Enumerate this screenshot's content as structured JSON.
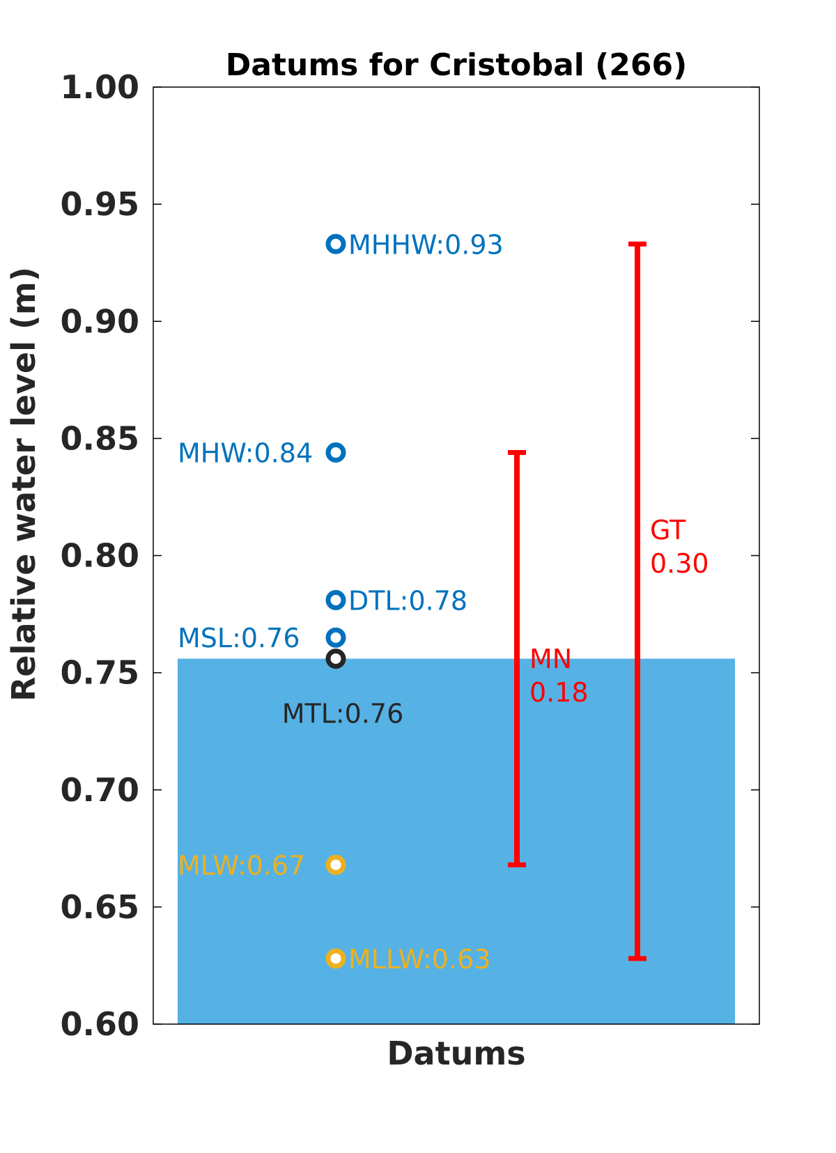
{
  "chart_data": {
    "type": "scatter",
    "title": "Datums for Cristobal (266)",
    "xlabel": "Datums",
    "ylabel": "Relative water level (m)",
    "ylim": [
      0.6,
      1.0
    ],
    "yticks": [
      "0.60",
      "0.65",
      "0.70",
      "0.75",
      "0.80",
      "0.85",
      "0.90",
      "0.95",
      "1.00"
    ],
    "ytick_values": [
      0.6,
      0.65,
      0.7,
      0.75,
      0.8,
      0.85,
      0.9,
      0.95,
      1.0
    ],
    "grid": false,
    "water_fill": {
      "top": 0.756,
      "bottom": 0.6,
      "color": "#56B2E5"
    },
    "points": [
      {
        "name": "MHHW",
        "value": 0.933,
        "label": "MHHW:0.93",
        "color": "#0072BD",
        "label_side": "right"
      },
      {
        "name": "MHW",
        "value": 0.844,
        "label": "MHW:0.84",
        "color": "#0072BD",
        "label_side": "left"
      },
      {
        "name": "DTL",
        "value": 0.781,
        "label": "DTL:0.78",
        "color": "#0072BD",
        "label_side": "right"
      },
      {
        "name": "MSL",
        "value": 0.765,
        "label": "MSL:0.76",
        "color": "#0072BD",
        "label_side": "left"
      },
      {
        "name": "MTL",
        "value": 0.756,
        "label": "MTL:0.76",
        "color": "#262626",
        "label_side": "below"
      },
      {
        "name": "MLW",
        "value": 0.668,
        "label": "MLW:0.67",
        "color": "#EDB120",
        "label_side": "left"
      },
      {
        "name": "MLLW",
        "value": 0.628,
        "label": "MLLW:0.63",
        "color": "#EDB120",
        "label_side": "right"
      }
    ],
    "ranges": [
      {
        "name": "MN",
        "low": 0.668,
        "high": 0.844,
        "label_line1": "MN",
        "label_line2": "0.18",
        "color": "#FF0000"
      },
      {
        "name": "GT",
        "low": 0.628,
        "high": 0.933,
        "label_line1": "GT",
        "label_line2": "0.30",
        "color": "#FF0000"
      }
    ]
  }
}
